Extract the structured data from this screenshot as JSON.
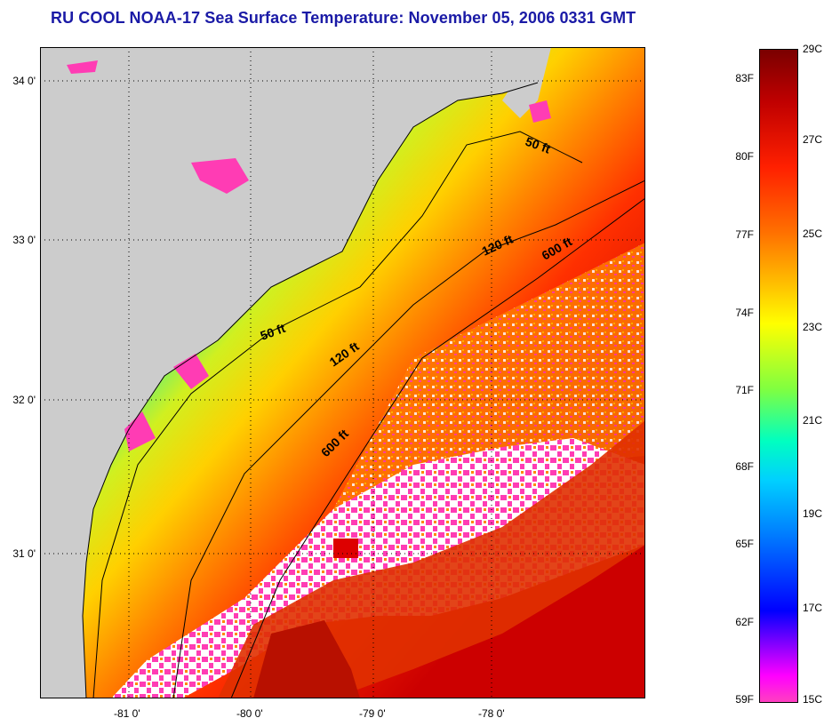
{
  "title": "RU COOL  NOAA-17  Sea Surface Temperature:  November 05, 2006 0331 GMT",
  "latitude_labels": [
    "34 0'",
    "33 0'",
    "32 0'",
    "31 0'"
  ],
  "longitude_labels": [
    "-81 0'",
    "-80 0'",
    "-79 0'",
    "-78 0'"
  ],
  "contours": {
    "c50a": "50 ft",
    "c50b": "50 ft",
    "c120a": "120 ft",
    "c120b": "120 ft",
    "c600a": "600 ft",
    "c600b": "600 ft"
  },
  "colorbar": {
    "fahrenheit": [
      "83F",
      "80F",
      "77F",
      "74F",
      "71F",
      "68F",
      "65F",
      "62F",
      "59F"
    ],
    "celsius": [
      "29C",
      "27C",
      "25C",
      "23C",
      "21C",
      "19C",
      "17C",
      "15C"
    ]
  },
  "colors": {
    "land": "#cccccc",
    "cloud_mask": "#ff3cb4",
    "cold": "#2222ff",
    "warm": "#cc0000",
    "title": "#1a1aa6"
  }
}
